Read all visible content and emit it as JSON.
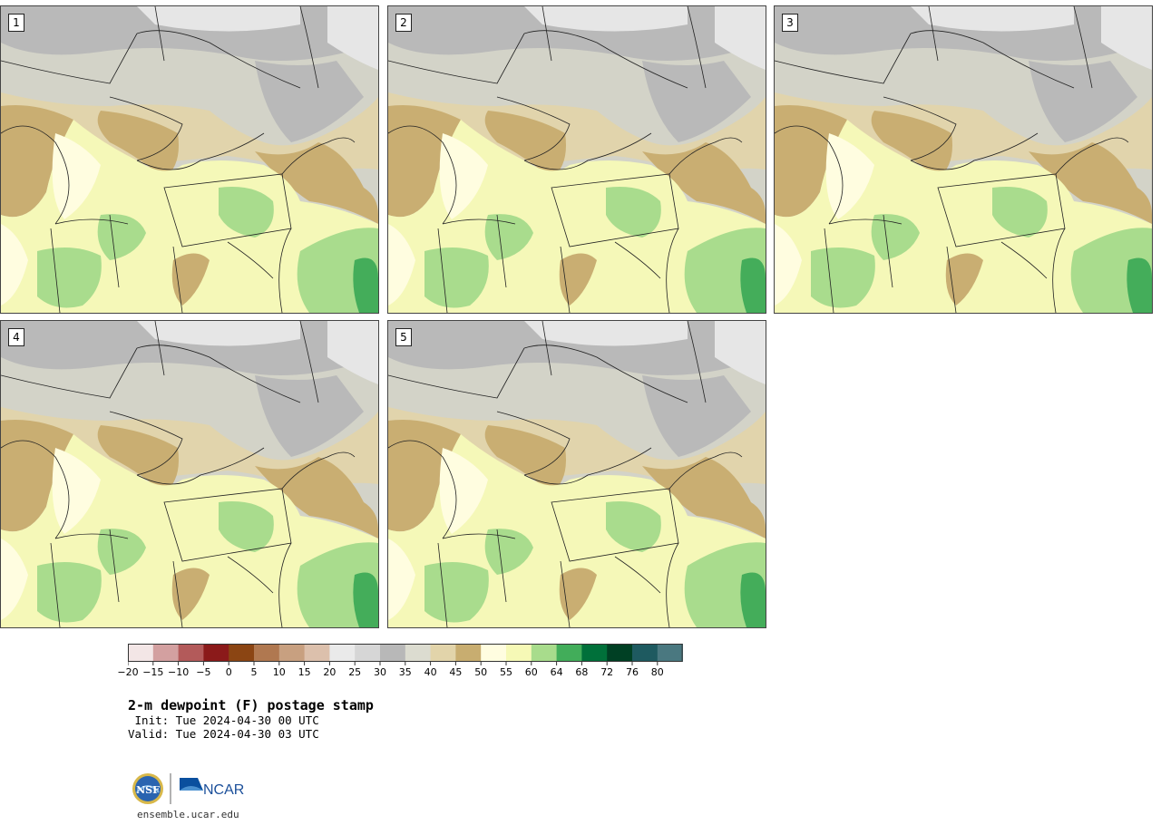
{
  "panels": [
    {
      "label": "1"
    },
    {
      "label": "2"
    },
    {
      "label": "3"
    },
    {
      "label": "4"
    },
    {
      "label": "5"
    }
  ],
  "colorbar": {
    "colors": [
      "#f3e6e6",
      "#d3a0a0",
      "#b35a5a",
      "#8b1a1a",
      "#8b4513",
      "#b07850",
      "#c8a080",
      "#dcc0ac",
      "#eaeaea",
      "#d6d6d6",
      "#b8b8b8",
      "#dcdcd0",
      "#e2d4aa",
      "#c8ad70",
      "#fffde0",
      "#f6f9b6",
      "#a8dc8c",
      "#42ad5a",
      "#00703a",
      "#004024",
      "#1e5a60",
      "#4a7880"
    ],
    "tick_labels": [
      "−20",
      "−15",
      "−10",
      "−5",
      "0",
      "5",
      "10",
      "15",
      "20",
      "25",
      "30",
      "35",
      "40",
      "45",
      "50",
      "55",
      "60",
      "64",
      "68",
      "72",
      "76",
      "80"
    ]
  },
  "title": "2-m dewpoint (F) postage stamp",
  "init": " Init: Tue 2024-04-30 00 UTC",
  "valid": "Valid: Tue 2024-04-30 03 UTC",
  "logo": {
    "nsf": "NSF",
    "ncar": "NCAR"
  },
  "site": "ensemble.ucar.edu"
}
